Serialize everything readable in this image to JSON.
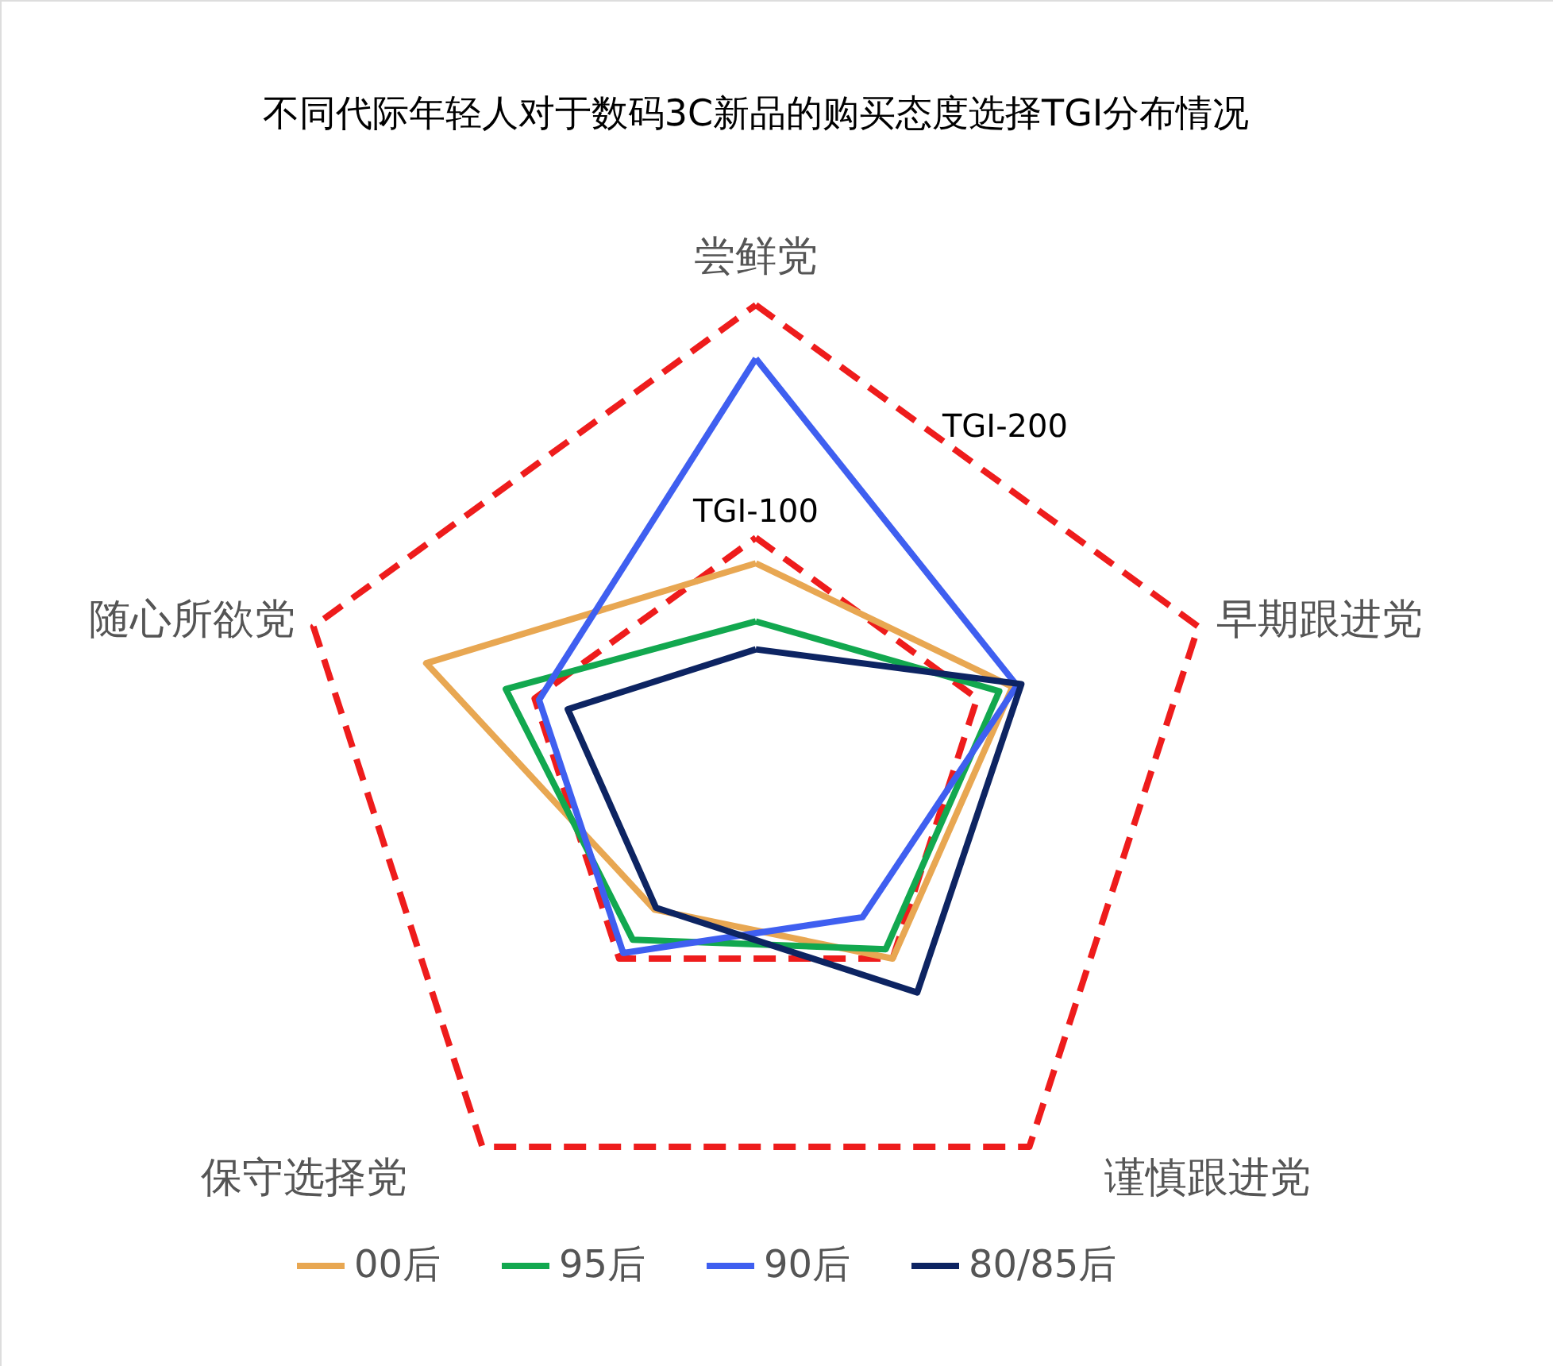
{
  "chart_data": {
    "type": "radar",
    "title": "不同代际年轻人对于数码3C新品的购买态度选择TGI分布情况",
    "categories": [
      "尝鲜党",
      "早期跟进党",
      "谨慎跟进党",
      "保守选择党",
      "随心所欲党"
    ],
    "ylim": [
      0,
      200
    ],
    "yticks": [
      {
        "value": 100,
        "label": "TGI-100"
      },
      {
        "value": 200,
        "label": "TGI-200"
      }
    ],
    "legend": "bottom",
    "line_style": "solid",
    "marker": "none",
    "grid": true,
    "series": [
      {
        "name": "00后",
        "color": "#e8a752",
        "values": [
          89,
          116,
          100,
          74,
          149
        ]
      },
      {
        "name": "95后",
        "color": "#12a84f",
        "values": [
          64,
          110,
          95,
          90,
          113
        ]
      },
      {
        "name": "90后",
        "color": "#3f5ff0",
        "values": [
          177,
          118,
          78,
          97,
          98
        ]
      },
      {
        "name": "80/85后",
        "color": "#0d2462",
        "values": [
          52,
          120,
          118,
          73,
          85
        ]
      }
    ]
  }
}
